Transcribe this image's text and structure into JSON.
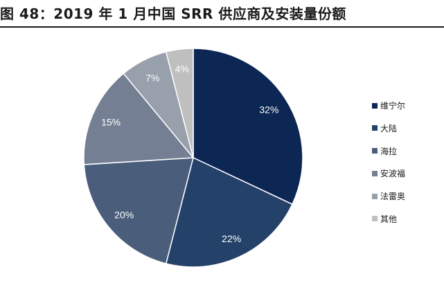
{
  "header": {
    "title": "图 48：2019 年 1 月中国 SRR 供应商及安装量份额"
  },
  "chart_data": {
    "type": "pie",
    "title": "图 48：2019 年 1 月中国 SRR 供应商及安装量份额",
    "legend_position": "right",
    "start_angle": "12 o'clock",
    "direction": "clockwise",
    "labels": [
      "维宁尔",
      "大陆",
      "海拉",
      "安波福",
      "法雷奥",
      "其他"
    ],
    "values": [
      32,
      22,
      20,
      15,
      7,
      4
    ],
    "value_labels": [
      "32%",
      "22%",
      "20%",
      "15%",
      "7%",
      "4%"
    ],
    "colors": [
      "#0d2754",
      "#24416a",
      "#4a5e7c",
      "#747f93",
      "#98a0ab",
      "#bfbfbf"
    ]
  }
}
